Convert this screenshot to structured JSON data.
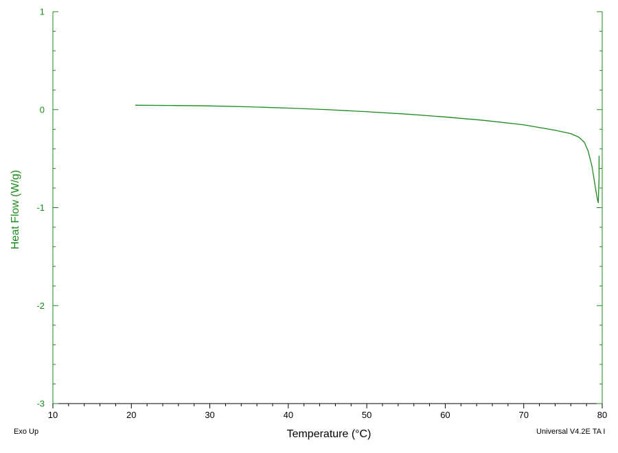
{
  "chart_data": {
    "type": "line",
    "title": "",
    "xlabel": "Temperature (°C)",
    "ylabel": "Heat Flow (W/g)",
    "xlim": [
      10,
      80
    ],
    "ylim": [
      -3,
      1
    ],
    "x_ticks": [
      10,
      20,
      30,
      40,
      50,
      60,
      70,
      80
    ],
    "y_ticks": [
      1,
      0,
      -1,
      -2,
      -3
    ],
    "grid": false,
    "legend": "none",
    "colors": {
      "series": "#1a8a1a",
      "axis_label_y": "#1a8a1a",
      "axes": "#1a8a1a"
    },
    "series": [
      {
        "x": [
          20.5,
          25,
          30,
          35,
          40,
          45,
          50,
          55,
          60,
          65,
          70,
          74,
          76,
          77,
          77.7,
          78.2,
          78.7,
          79.1,
          79.4,
          79.5,
          79.6,
          79.6
        ],
        "y": [
          0.045,
          0.043,
          0.038,
          0.029,
          0.016,
          0.0,
          -0.021,
          -0.045,
          -0.075,
          -0.11,
          -0.155,
          -0.21,
          -0.245,
          -0.28,
          -0.33,
          -0.42,
          -0.58,
          -0.78,
          -0.92,
          -0.95,
          -0.7,
          -0.47
        ]
      }
    ]
  },
  "annotations": {
    "exo_label": "Exo Up",
    "software_label": "Universal V4.2E TA I"
  }
}
